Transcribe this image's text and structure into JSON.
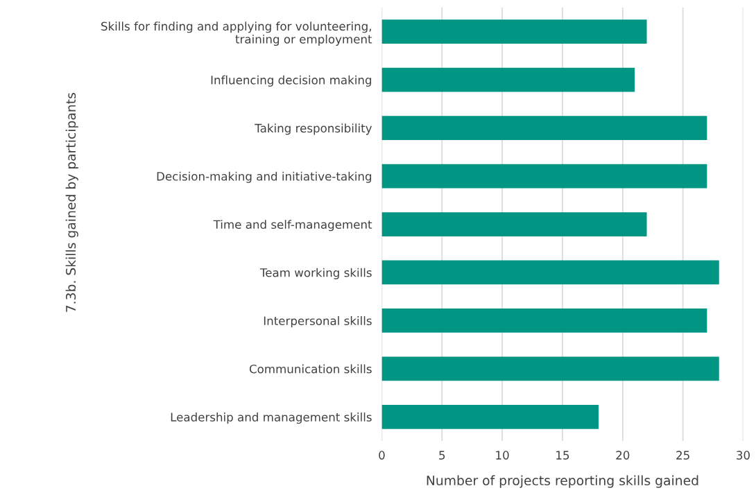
{
  "chart_data": {
    "type": "bar",
    "orientation": "horizontal",
    "categories": [
      "Skills for finding and applying for volunteering,\ntraining or employment",
      "Influencing decision making",
      "Taking responsibility",
      "Decision-making and initiative-taking",
      "Time and self-management",
      "Team working skills",
      "Interpersonal skills",
      "Communication skills",
      "Leadership and management skills"
    ],
    "values": [
      22,
      21,
      27,
      27,
      22,
      28,
      27,
      28,
      18
    ],
    "color": "#009683",
    "xlim": [
      0,
      30
    ],
    "xticks": [
      0,
      5,
      10,
      15,
      20,
      25,
      30
    ],
    "xlabel": "Number of projects reporting skills gained",
    "ylabel": "7.3b. Skills gained by participants",
    "grid": "x",
    "legend": false
  }
}
